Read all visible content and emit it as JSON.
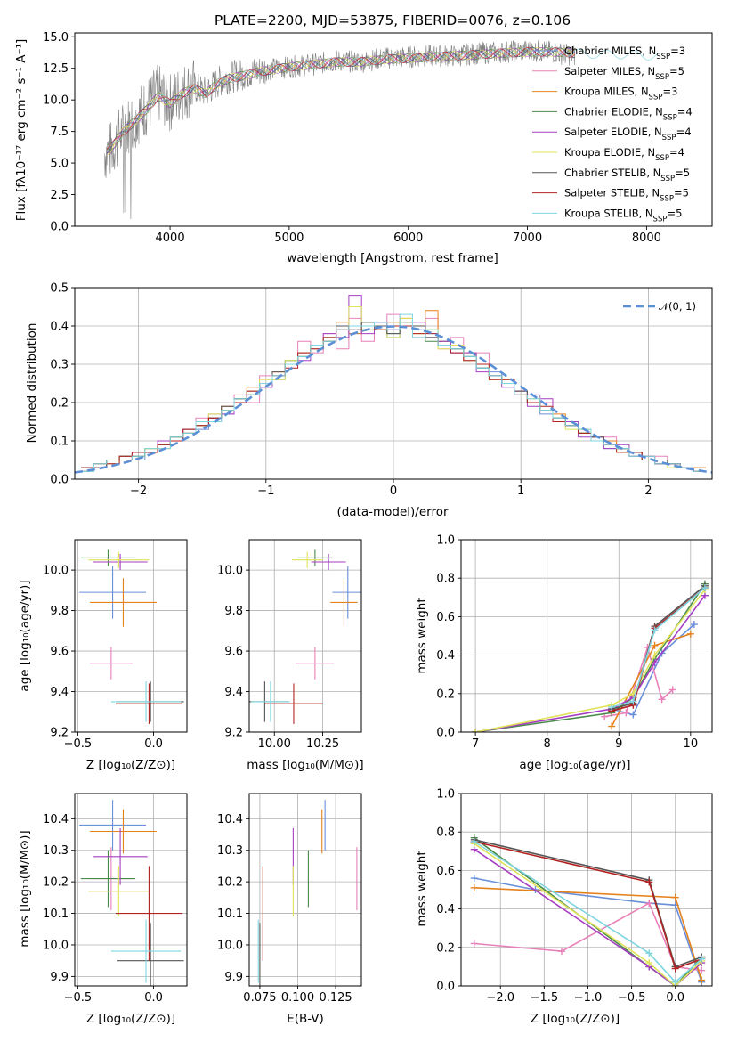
{
  "chart_data": [
    {
      "id": "spectrum",
      "type": "line",
      "title": "PLATE=2200, MJD=53875, FIBERID=0076, z=0.106",
      "xlabel": "wavelength [Angstrom, rest frame]",
      "ylabel": "Flux [fλ10⁻¹⁷ erg cm⁻² s⁻¹ A⁻¹]",
      "xlim": [
        3200,
        8550
      ],
      "ylim": [
        0,
        15.3
      ],
      "xticks": [
        4000,
        5000,
        6000,
        7000,
        8000
      ],
      "yticks": [
        0.0,
        2.5,
        5.0,
        7.5,
        10.0,
        12.5,
        15.0
      ],
      "grid": false,
      "legend_position": "right",
      "observed": {
        "x": [
          3450,
          3500,
          3600,
          3700,
          3800,
          3900,
          4000,
          4100,
          4200,
          4300,
          4400,
          4500,
          4600,
          4800,
          5000,
          5200,
          5400,
          5600,
          5800,
          6000,
          6200,
          6400,
          6600,
          6800,
          7000,
          7200,
          7400
        ],
        "y": [
          5.8,
          6.0,
          7.5,
          8.5,
          9.4,
          10.5,
          9.8,
          10.6,
          11.0,
          10.6,
          11.4,
          11.8,
          12.0,
          12.4,
          12.6,
          12.8,
          13.1,
          13.0,
          13.3,
          13.4,
          13.5,
          13.5,
          13.7,
          13.8,
          13.9,
          13.8,
          13.5
        ]
      },
      "model": {
        "x": [
          3450,
          3500,
          3600,
          3700,
          3800,
          3900,
          4000,
          4100,
          4200,
          4300,
          4400,
          4500,
          4600,
          4800,
          5000,
          5200,
          5400,
          5600,
          5800,
          6000,
          6200,
          6400,
          6600,
          6800,
          7000,
          7200,
          7400,
          7600,
          7800,
          8000,
          8100
        ],
        "y": [
          5.9,
          6.1,
          7.4,
          8.3,
          9.2,
          10.3,
          9.7,
          10.5,
          10.9,
          10.5,
          11.3,
          11.7,
          11.9,
          12.3,
          12.6,
          12.8,
          13.0,
          13.0,
          13.2,
          13.3,
          13.4,
          13.5,
          13.6,
          13.7,
          13.8,
          13.8,
          13.7,
          13.6,
          13.6,
          13.5,
          13.5
        ]
      }
    },
    {
      "id": "residuals",
      "type": "line",
      "xlabel": "(data-model)/error",
      "ylabel": "Normed distribution",
      "xlim": [
        -2.5,
        2.5
      ],
      "ylim": [
        0,
        0.5
      ],
      "xticks": [
        -2,
        -1,
        0,
        1,
        2
      ],
      "yticks": [
        0.0,
        0.1,
        0.2,
        0.3,
        0.4,
        0.5
      ],
      "grid": true,
      "legend_position": "top-right",
      "reference_label": "𝒩(0, 1)",
      "bins": [
        -2.4,
        -2.3,
        -2.2,
        -2.1,
        -2.0,
        -1.9,
        -1.8,
        -1.7,
        -1.6,
        -1.5,
        -1.4,
        -1.3,
        -1.2,
        -1.1,
        -1.0,
        -0.9,
        -0.8,
        -0.7,
        -0.6,
        -0.5,
        -0.4,
        -0.3,
        -0.2,
        -0.1,
        0.0,
        0.1,
        0.2,
        0.3,
        0.4,
        0.5,
        0.6,
        0.7,
        0.8,
        0.9,
        1.0,
        1.1,
        1.2,
        1.3,
        1.4,
        1.5,
        1.6,
        1.7,
        1.8,
        1.9,
        2.0,
        2.1,
        2.2,
        2.3,
        2.4
      ]
    },
    {
      "id": "age-vs-Z",
      "type": "scatter",
      "xlabel": "Z [log₁₀(Z/Z⊙)]",
      "ylabel": "age  [log₁₀(age/yr)]",
      "xlim": [
        -0.52,
        0.22
      ],
      "ylim": [
        9.2,
        10.15
      ],
      "xticks": [
        -0.5,
        0.0
      ],
      "yticks": [
        9.2,
        9.4,
        9.6,
        9.8,
        10.0
      ],
      "grid": true
    },
    {
      "id": "age-vs-mass",
      "type": "scatter",
      "xlabel": "mass [log₁₀(M/M⊙)]",
      "ylabel": "",
      "xlim": [
        9.87,
        10.45
      ],
      "ylim": [
        9.2,
        10.15
      ],
      "xticks": [
        10.0,
        10.25
      ],
      "yticks": [
        9.2,
        9.4,
        9.6,
        9.8,
        10.0
      ],
      "grid": true
    },
    {
      "id": "massweight-vs-age",
      "type": "line",
      "xlabel": "age  [log₁₀(age/yr)]",
      "ylabel": "mass weight",
      "xlim": [
        6.8,
        10.3
      ],
      "ylim": [
        0,
        1.0
      ],
      "xticks": [
        7,
        8,
        9,
        10
      ],
      "yticks": [
        0.0,
        0.2,
        0.4,
        0.6,
        0.8,
        1.0
      ],
      "grid": true
    },
    {
      "id": "mass-vs-Z",
      "type": "scatter",
      "xlabel": "Z [log₁₀(Z/Z⊙)]",
      "ylabel": "mass [log₁₀(M/M⊙)]",
      "xlim": [
        -0.52,
        0.22
      ],
      "ylim": [
        9.87,
        10.48
      ],
      "xticks": [
        -0.5,
        0.0
      ],
      "yticks": [
        9.9,
        10.0,
        10.1,
        10.2,
        10.3,
        10.4
      ],
      "grid": true
    },
    {
      "id": "mass-vs-ebv",
      "type": "scatter",
      "xlabel": "E(B-V)",
      "ylabel": "",
      "xlim": [
        0.068,
        0.142
      ],
      "ylim": [
        9.87,
        10.48
      ],
      "xticks": [
        0.075,
        0.1,
        0.125
      ],
      "xticklabels": [
        "0.075",
        "0.100",
        "0.125"
      ],
      "yticks": [
        9.9,
        10.0,
        10.1,
        10.2,
        10.3,
        10.4
      ],
      "grid": true
    },
    {
      "id": "massweight-vs-Z",
      "type": "line",
      "xlabel": "Z [log₁₀(Z/Z⊙)]",
      "ylabel": "mass weight",
      "xlim": [
        -2.45,
        0.42
      ],
      "ylim": [
        0,
        1.0
      ],
      "xticks": [
        -2.0,
        -1.5,
        -1.0,
        -0.5,
        0.0
      ],
      "xticklabels": [
        "−2.0",
        "−1.5",
        "−1.0",
        "−0.5",
        "0.0"
      ],
      "yticks": [
        0.0,
        0.2,
        0.4,
        0.6,
        0.8,
        1.0
      ],
      "grid": true
    }
  ],
  "models": [
    {
      "name": "Chabrier MILES, N",
      "nssp": "=3",
      "color": "#6a8fd9",
      "hist": [
        0.03,
        0.04,
        0.05,
        0.06,
        0.05,
        0.07,
        0.09,
        0.1,
        0.12,
        0.13,
        0.16,
        0.17,
        0.21,
        0.22,
        0.24,
        0.26,
        0.31,
        0.33,
        0.34,
        0.36,
        0.4,
        0.38,
        0.39,
        0.41,
        0.37,
        0.4,
        0.39,
        0.38,
        0.35,
        0.33,
        0.31,
        0.29,
        0.28,
        0.25,
        0.23,
        0.22,
        0.17,
        0.16,
        0.14,
        0.12,
        0.11,
        0.08,
        0.08,
        0.07,
        0.06,
        0.05,
        0.04,
        0.03,
        0.02
      ],
      "age": 9.89,
      "age_err": 0.13,
      "Z": -0.27,
      "Z_err": 0.22,
      "mass": 10.38,
      "mass_err": 0.08,
      "ebv": 0.118,
      "w_age": [
        [
          8.9,
          0.12
        ],
        [
          9.2,
          0.09
        ],
        [
          9.6,
          0.41
        ],
        [
          10.05,
          0.56
        ]
      ],
      "w_Z": [
        [
          -2.3,
          0.56
        ],
        [
          -1.6,
          0.5
        ],
        [
          -0.3,
          0.43
        ],
        [
          0.0,
          0.42
        ],
        [
          0.3,
          0.02
        ]
      ]
    },
    {
      "name": "Salpeter MILES, N",
      "nssp": "=5",
      "color": "#e881b9",
      "hist": [
        0.02,
        0.03,
        0.04,
        0.05,
        0.06,
        0.07,
        0.08,
        0.11,
        0.12,
        0.16,
        0.15,
        0.19,
        0.22,
        0.2,
        0.27,
        0.28,
        0.3,
        0.36,
        0.33,
        0.38,
        0.34,
        0.42,
        0.36,
        0.39,
        0.43,
        0.4,
        0.37,
        0.42,
        0.34,
        0.37,
        0.31,
        0.33,
        0.27,
        0.25,
        0.23,
        0.22,
        0.2,
        0.16,
        0.14,
        0.13,
        0.1,
        0.11,
        0.08,
        0.07,
        0.05,
        0.06,
        0.04,
        0.03,
        0.02
      ],
      "age": 9.54,
      "age_err": 0.08,
      "Z": -0.28,
      "Z_err": 0.14,
      "mass": 10.21,
      "mass_err": 0.1,
      "ebv": 0.139,
      "w_age": [
        [
          8.8,
          0.08
        ],
        [
          9.1,
          0.1
        ],
        [
          9.4,
          0.44
        ],
        [
          9.6,
          0.17
        ],
        [
          9.75,
          0.22
        ]
      ],
      "w_Z": [
        [
          -2.3,
          0.22
        ],
        [
          -1.3,
          0.18
        ],
        [
          -0.3,
          0.43
        ],
        [
          0.0,
          0.1
        ],
        [
          0.3,
          0.08
        ]
      ]
    },
    {
      "name": "Kroupa MILES, N",
      "nssp": "=3",
      "color": "#e6821e",
      "hist": [
        0.02,
        0.03,
        0.05,
        0.05,
        0.06,
        0.08,
        0.09,
        0.11,
        0.12,
        0.15,
        0.16,
        0.19,
        0.21,
        0.24,
        0.25,
        0.28,
        0.3,
        0.33,
        0.35,
        0.36,
        0.41,
        0.38,
        0.4,
        0.39,
        0.41,
        0.42,
        0.38,
        0.44,
        0.36,
        0.35,
        0.33,
        0.3,
        0.27,
        0.26,
        0.23,
        0.2,
        0.18,
        0.17,
        0.14,
        0.12,
        0.11,
        0.1,
        0.08,
        0.07,
        0.06,
        0.05,
        0.04,
        0.03,
        0.03
      ],
      "age": 9.84,
      "age_err": 0.12,
      "Z": -0.2,
      "Z_err": 0.22,
      "mass": 10.36,
      "mass_err": 0.07,
      "ebv": 0.116,
      "w_age": [
        [
          8.9,
          0.03
        ],
        [
          9.5,
          0.45
        ],
        [
          10.0,
          0.51
        ]
      ],
      "w_Z": [
        [
          -2.3,
          0.51
        ],
        [
          0.0,
          0.46
        ],
        [
          0.3,
          0.03
        ]
      ]
    },
    {
      "name": "Chabrier ELODIE, N",
      "nssp": "=4",
      "color": "#4a8a4a",
      "hist": [
        0.02,
        0.04,
        0.05,
        0.06,
        0.06,
        0.08,
        0.09,
        0.11,
        0.13,
        0.14,
        0.16,
        0.18,
        0.21,
        0.23,
        0.25,
        0.27,
        0.31,
        0.32,
        0.35,
        0.37,
        0.39,
        0.4,
        0.41,
        0.4,
        0.38,
        0.41,
        0.4,
        0.36,
        0.36,
        0.34,
        0.32,
        0.29,
        0.27,
        0.25,
        0.22,
        0.2,
        0.18,
        0.16,
        0.14,
        0.12,
        0.1,
        0.09,
        0.08,
        0.06,
        0.05,
        0.04,
        0.04,
        0.03,
        0.02
      ],
      "age": 10.06,
      "age_err": 0.04,
      "Z": -0.3,
      "Z_err": 0.18,
      "mass": 10.21,
      "mass_err": 0.09,
      "ebv": 0.107,
      "w_age": [
        [
          7.0,
          0.0
        ],
        [
          8.9,
          0.1
        ],
        [
          9.2,
          0.18
        ],
        [
          9.5,
          0.38
        ],
        [
          10.2,
          0.77
        ]
      ],
      "w_Z": [
        [
          -2.3,
          0.77
        ],
        [
          -0.3,
          0.1
        ],
        [
          0.0,
          0.0
        ],
        [
          0.3,
          0.15
        ]
      ]
    },
    {
      "name": "Salpeter ELODIE, N",
      "nssp": "=4",
      "color": "#a53ec2",
      "hist": [
        0.02,
        0.03,
        0.05,
        0.05,
        0.07,
        0.07,
        0.1,
        0.1,
        0.13,
        0.15,
        0.17,
        0.17,
        0.2,
        0.23,
        0.24,
        0.27,
        0.3,
        0.31,
        0.34,
        0.38,
        0.37,
        0.48,
        0.38,
        0.41,
        0.39,
        0.4,
        0.41,
        0.37,
        0.36,
        0.33,
        0.33,
        0.28,
        0.27,
        0.24,
        0.23,
        0.19,
        0.21,
        0.15,
        0.15,
        0.11,
        0.11,
        0.08,
        0.09,
        0.06,
        0.06,
        0.04,
        0.04,
        0.03,
        0.02
      ],
      "age": 10.04,
      "age_err": 0.04,
      "Z": -0.22,
      "Z_err": 0.18,
      "mass": 10.28,
      "mass_err": 0.09,
      "ebv": 0.097,
      "w_age": [
        [
          7.0,
          0.0
        ],
        [
          8.9,
          0.12
        ],
        [
          9.2,
          0.18
        ],
        [
          9.5,
          0.36
        ],
        [
          10.2,
          0.71
        ]
      ],
      "w_Z": [
        [
          -2.3,
          0.71
        ],
        [
          -0.3,
          0.1
        ],
        [
          0.0,
          0.0
        ],
        [
          0.3,
          0.12
        ]
      ]
    },
    {
      "name": "Kroupa ELODIE, N",
      "nssp": "=4",
      "color": "#dfe35a",
      "hist": [
        0.02,
        0.04,
        0.04,
        0.06,
        0.06,
        0.08,
        0.08,
        0.11,
        0.12,
        0.14,
        0.17,
        0.18,
        0.2,
        0.23,
        0.26,
        0.26,
        0.31,
        0.32,
        0.34,
        0.37,
        0.39,
        0.45,
        0.39,
        0.4,
        0.37,
        0.42,
        0.38,
        0.39,
        0.34,
        0.35,
        0.31,
        0.3,
        0.26,
        0.26,
        0.22,
        0.21,
        0.18,
        0.16,
        0.13,
        0.13,
        0.1,
        0.09,
        0.07,
        0.07,
        0.05,
        0.05,
        0.03,
        0.03,
        0.02
      ],
      "age": 10.05,
      "age_err": 0.04,
      "Z": -0.23,
      "Z_err": 0.2,
      "mass": 10.17,
      "mass_err": 0.08,
      "ebv": 0.097,
      "w_age": [
        [
          7.0,
          0.0
        ],
        [
          8.9,
          0.14
        ],
        [
          9.2,
          0.2
        ],
        [
          9.5,
          0.4
        ],
        [
          10.2,
          0.74
        ]
      ],
      "w_Z": [
        [
          -2.3,
          0.74
        ],
        [
          -0.3,
          0.12
        ],
        [
          0.0,
          0.0
        ],
        [
          0.3,
          0.13
        ]
      ]
    },
    {
      "name": "Chabrier STELIB, N",
      "nssp": "=5",
      "color": "#555555",
      "hist": [
        0.03,
        0.03,
        0.05,
        0.06,
        0.06,
        0.07,
        0.09,
        0.11,
        0.12,
        0.14,
        0.16,
        0.19,
        0.21,
        0.22,
        0.25,
        0.28,
        0.3,
        0.32,
        0.35,
        0.36,
        0.4,
        0.39,
        0.41,
        0.4,
        0.38,
        0.4,
        0.4,
        0.37,
        0.35,
        0.34,
        0.32,
        0.29,
        0.27,
        0.25,
        0.23,
        0.2,
        0.18,
        0.16,
        0.14,
        0.12,
        0.11,
        0.09,
        0.08,
        0.07,
        0.05,
        0.05,
        0.04,
        0.03,
        0.02
      ],
      "age": 9.35,
      "age_err": 0.1,
      "Z": -0.02,
      "Z_err": 0.22,
      "mass": 9.95,
      "mass_err": 0.12,
      "ebv": 0.075,
      "w_age": [
        [
          8.9,
          0.12
        ],
        [
          9.2,
          0.15
        ],
        [
          9.5,
          0.55
        ],
        [
          10.2,
          0.76
        ]
      ],
      "w_Z": [
        [
          -2.3,
          0.76
        ],
        [
          -0.3,
          0.55
        ],
        [
          0.0,
          0.1
        ],
        [
          0.3,
          0.15
        ]
      ]
    },
    {
      "name": "Salpeter STELIB, N",
      "nssp": "=5",
      "color": "#b22222",
      "hist": [
        0.03,
        0.04,
        0.04,
        0.06,
        0.07,
        0.07,
        0.09,
        0.1,
        0.13,
        0.14,
        0.16,
        0.18,
        0.2,
        0.23,
        0.25,
        0.27,
        0.29,
        0.33,
        0.34,
        0.37,
        0.39,
        0.4,
        0.4,
        0.39,
        0.4,
        0.4,
        0.38,
        0.38,
        0.35,
        0.33,
        0.31,
        0.3,
        0.26,
        0.26,
        0.22,
        0.2,
        0.19,
        0.15,
        0.14,
        0.12,
        0.1,
        0.09,
        0.07,
        0.07,
        0.05,
        0.04,
        0.04,
        0.03,
        0.02
      ],
      "age": 9.34,
      "age_err": 0.1,
      "Z": -0.03,
      "Z_err": 0.22,
      "mass": 10.1,
      "mass_err": 0.15,
      "ebv": 0.077,
      "w_age": [
        [
          8.9,
          0.11
        ],
        [
          9.2,
          0.14
        ],
        [
          9.5,
          0.54
        ],
        [
          10.2,
          0.75
        ]
      ],
      "w_Z": [
        [
          -2.3,
          0.75
        ],
        [
          -0.3,
          0.54
        ],
        [
          0.0,
          0.09
        ],
        [
          0.3,
          0.14
        ]
      ]
    },
    {
      "name": "Kroupa STELIB, N",
      "nssp": "=5",
      "color": "#7fd6e0",
      "hist": [
        0.02,
        0.04,
        0.05,
        0.05,
        0.06,
        0.08,
        0.08,
        0.11,
        0.12,
        0.15,
        0.15,
        0.18,
        0.21,
        0.22,
        0.25,
        0.27,
        0.3,
        0.32,
        0.35,
        0.36,
        0.39,
        0.4,
        0.4,
        0.41,
        0.39,
        0.43,
        0.37,
        0.39,
        0.35,
        0.34,
        0.32,
        0.29,
        0.27,
        0.25,
        0.22,
        0.21,
        0.18,
        0.16,
        0.14,
        0.13,
        0.1,
        0.09,
        0.08,
        0.06,
        0.06,
        0.04,
        0.04,
        0.03,
        0.02
      ],
      "age": 9.35,
      "age_err": 0.1,
      "Z": -0.05,
      "Z_err": 0.23,
      "mass": 9.98,
      "mass_err": 0.1,
      "ebv": 0.074,
      "w_age": [
        [
          8.9,
          0.13
        ],
        [
          9.2,
          0.16
        ],
        [
          9.5,
          0.53
        ],
        [
          10.2,
          0.75
        ]
      ],
      "w_Z": [
        [
          -2.3,
          0.75
        ],
        [
          -0.3,
          0.17
        ],
        [
          0.0,
          0.02
        ],
        [
          0.3,
          0.14
        ]
      ]
    }
  ]
}
